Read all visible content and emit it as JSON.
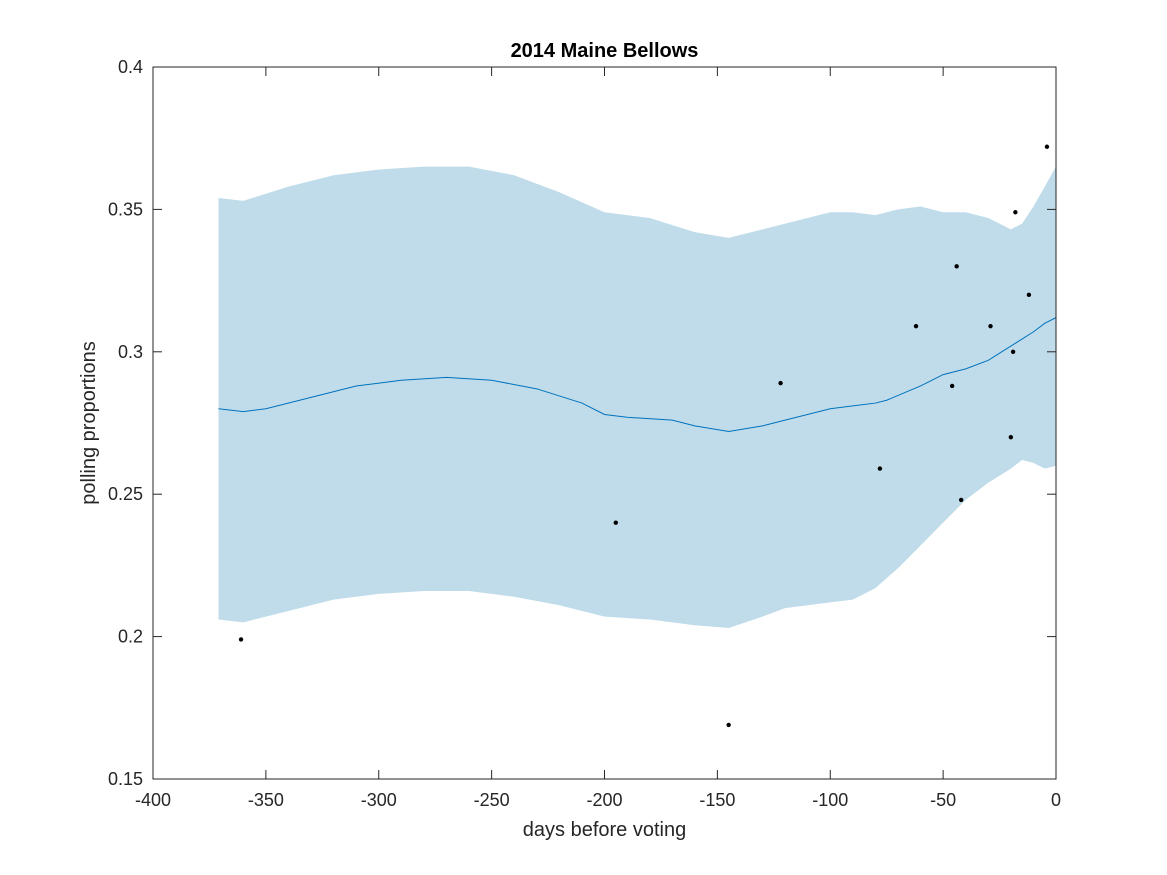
{
  "chart_data": {
    "type": "line",
    "title": "2014 Maine Bellows",
    "xlabel": "days before voting",
    "ylabel": "polling proportions",
    "xlim": [
      -400,
      0
    ],
    "ylim": [
      0.15,
      0.4
    ],
    "xticks": [
      -400,
      -350,
      -300,
      -250,
      -200,
      -150,
      -100,
      -50,
      0
    ],
    "yticks": [
      0.15,
      0.2,
      0.25,
      0.3,
      0.35,
      0.4
    ],
    "xtick_labels": [
      "-400",
      "-350",
      "-300",
      "-250",
      "-200",
      "-150",
      "-100",
      "-50",
      "0"
    ],
    "ytick_labels": [
      "0.15",
      "0.2",
      "0.25",
      "0.3",
      "0.35",
      "0.4"
    ],
    "grid": false,
    "colors": {
      "band": "#c0dcea",
      "line": "#0072bd",
      "points": "#000000",
      "axes": "#262626"
    },
    "band": {
      "x": [
        -371,
        -360,
        -340,
        -320,
        -300,
        -280,
        -260,
        -240,
        -220,
        -200,
        -180,
        -160,
        -145,
        -130,
        -120,
        -100,
        -90,
        -80,
        -70,
        -60,
        -50,
        -40,
        -30,
        -20,
        -15,
        -10,
        -5,
        0
      ],
      "upper": [
        0.354,
        0.353,
        0.358,
        0.362,
        0.364,
        0.365,
        0.365,
        0.362,
        0.356,
        0.349,
        0.347,
        0.342,
        0.34,
        0.343,
        0.345,
        0.349,
        0.349,
        0.348,
        0.35,
        0.351,
        0.349,
        0.349,
        0.347,
        0.343,
        0.345,
        0.351,
        0.358,
        0.365
      ],
      "lower": [
        0.206,
        0.205,
        0.209,
        0.213,
        0.215,
        0.216,
        0.216,
        0.214,
        0.211,
        0.207,
        0.206,
        0.204,
        0.203,
        0.207,
        0.21,
        0.212,
        0.213,
        0.217,
        0.224,
        0.232,
        0.24,
        0.248,
        0.254,
        0.259,
        0.262,
        0.261,
        0.259,
        0.26
      ]
    },
    "series": [
      {
        "x": [
          -371,
          -360,
          -350,
          -330,
          -310,
          -290,
          -270,
          -250,
          -230,
          -210,
          -200,
          -190,
          -170,
          -160,
          -145,
          -130,
          -120,
          -100,
          -90,
          -80,
          -75,
          -60,
          -50,
          -40,
          -30,
          -20,
          -10,
          -5,
          0
        ],
        "values": [
          0.28,
          0.279,
          0.28,
          0.284,
          0.288,
          0.29,
          0.291,
          0.29,
          0.287,
          0.282,
          0.278,
          0.277,
          0.276,
          0.274,
          0.272,
          0.274,
          0.276,
          0.28,
          0.281,
          0.282,
          0.283,
          0.288,
          0.292,
          0.294,
          0.297,
          0.302,
          0.307,
          0.31,
          0.312
        ]
      }
    ],
    "points": {
      "x": [
        -361,
        -195,
        -145,
        -122,
        -78,
        -62,
        -46,
        -44,
        -42,
        -29,
        -20,
        -19,
        -18,
        -12,
        -4
      ],
      "y": [
        0.199,
        0.24,
        0.169,
        0.289,
        0.259,
        0.309,
        0.288,
        0.33,
        0.248,
        0.309,
        0.27,
        0.3,
        0.349,
        0.32,
        0.372
      ]
    }
  }
}
